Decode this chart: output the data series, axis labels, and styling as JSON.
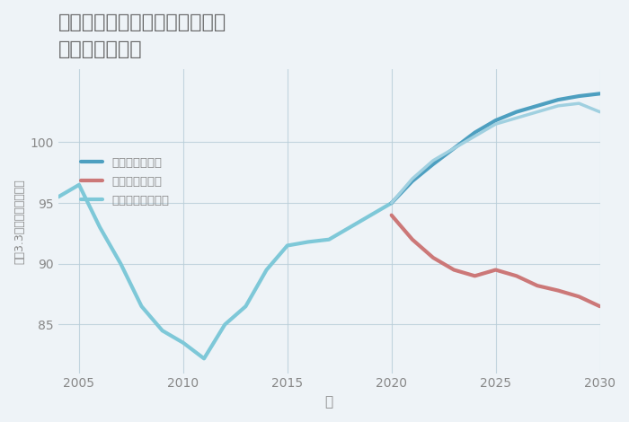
{
  "title": "大阪府堺市堺区南三国ヶ丘町の\n土地の価格推移",
  "xlabel": "年",
  "ylabel": "坪（3.3㎡）単価（万円）",
  "background_color": "#eef3f7",
  "plot_bg_color": "#eef3f7",
  "grid_color": "#b8cdd8",
  "legend": [
    "グッドシナリオ",
    "バッドシナリオ",
    "ノーマルシナリオ"
  ],
  "normal_x": [
    2004,
    2005,
    2006,
    2007,
    2008,
    2009,
    2010,
    2011,
    2012,
    2013,
    2014,
    2015,
    2016,
    2017,
    2018,
    2019,
    2020
  ],
  "normal_y": [
    95.5,
    96.5,
    93.0,
    90.0,
    86.5,
    84.5,
    83.5,
    82.2,
    85.0,
    86.5,
    89.5,
    91.5,
    91.8,
    92.0,
    93.0,
    94.0,
    95.0
  ],
  "good_x": [
    2020,
    2021,
    2022,
    2023,
    2024,
    2025,
    2026,
    2027,
    2028,
    2029,
    2030
  ],
  "good_y": [
    95.0,
    96.8,
    98.2,
    99.5,
    100.8,
    101.8,
    102.5,
    103.0,
    103.5,
    103.8,
    104.0
  ],
  "bad_x": [
    2020,
    2021,
    2022,
    2023,
    2024,
    2025,
    2026,
    2027,
    2028,
    2029,
    2030
  ],
  "bad_y": [
    94.0,
    92.0,
    90.5,
    89.5,
    89.0,
    89.5,
    89.0,
    88.2,
    87.8,
    87.3,
    86.5
  ],
  "normal2_x": [
    2020,
    2021,
    2022,
    2023,
    2024,
    2025,
    2026,
    2027,
    2028,
    2029,
    2030
  ],
  "normal2_y": [
    95.0,
    97.0,
    98.5,
    99.5,
    100.5,
    101.5,
    102.0,
    102.5,
    103.0,
    103.2,
    102.5
  ],
  "normal_color": "#7ec8d8",
  "good_color": "#4d9fc0",
  "bad_color": "#cc7878",
  "normal2_color": "#a0d0e0",
  "ylim": [
    81,
    106
  ],
  "xlim": [
    2004,
    2030
  ],
  "yticks": [
    85,
    90,
    95,
    100
  ],
  "xticks": [
    2005,
    2010,
    2015,
    2020,
    2025,
    2030
  ],
  "title_color": "#666666",
  "axis_color": "#888888",
  "linewidth": 2.5
}
